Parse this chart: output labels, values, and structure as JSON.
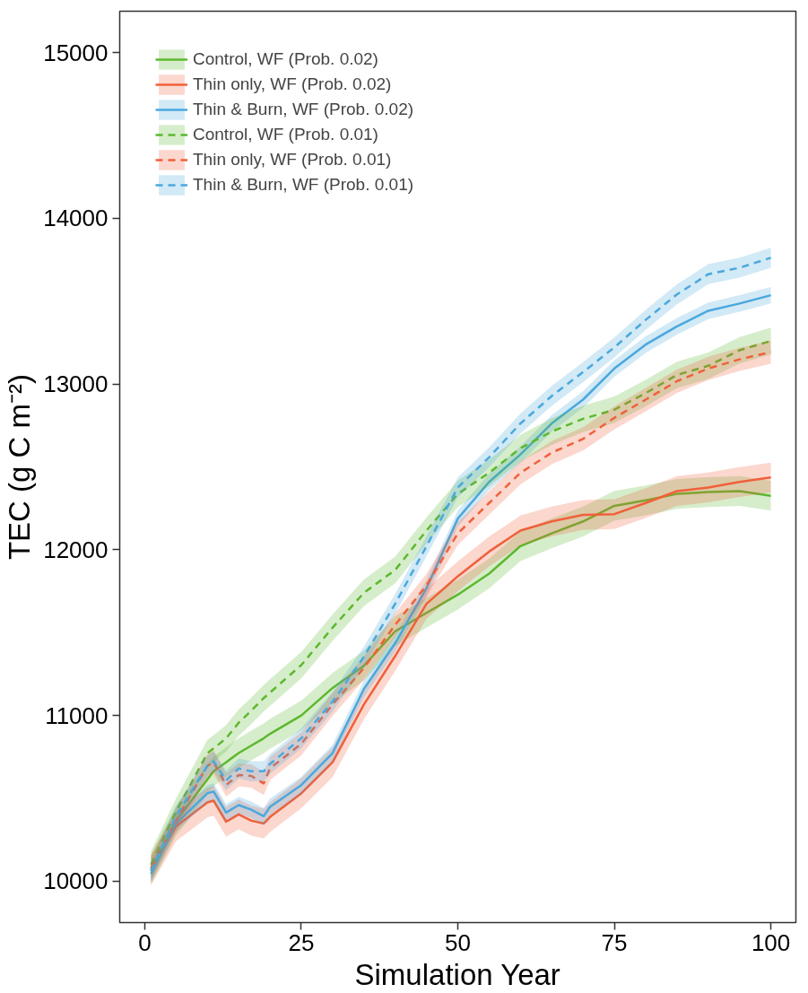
{
  "chart_data": {
    "type": "line",
    "xlabel": "Simulation Year",
    "ylabel": "TEC (g C m⁻²)",
    "x": [
      1,
      5,
      10,
      11,
      13,
      15,
      17,
      19,
      20,
      25,
      30,
      35,
      40,
      45,
      50,
      55,
      60,
      65,
      70,
      75,
      80,
      85,
      90,
      95,
      100
    ],
    "xlim": [
      -4,
      104
    ],
    "ylim": [
      9750,
      15250
    ],
    "xticks": [
      0,
      25,
      50,
      75,
      100
    ],
    "yticks": [
      10000,
      11000,
      12000,
      13000,
      14000,
      15000
    ],
    "grid": false,
    "legend": "top left",
    "marker": "none",
    "series": [
      {
        "name": "Control, WF (Prob. 0.02)",
        "color": "#5cb82e",
        "line_style": "solid",
        "values": [
          10072,
          10365,
          10613,
          10663,
          10718,
          10773,
          10818,
          10862,
          10889,
          11000,
          11166,
          11300,
          11508,
          11619,
          11729,
          11856,
          12022,
          12099,
          12171,
          12265,
          12298,
          12337,
          12348,
          12354,
          12326
        ],
        "lower": [
          9982,
          10275,
          10523,
          10573,
          10628,
          10683,
          10728,
          10772,
          10799,
          10910,
          11076,
          11210,
          11418,
          11529,
          11639,
          11766,
          11932,
          12009,
          12081,
          12175,
          12208,
          12247,
          12258,
          12264,
          12236
        ],
        "upper": [
          10162,
          10455,
          10703,
          10753,
          10808,
          10863,
          10908,
          10952,
          10979,
          11090,
          11256,
          11390,
          11598,
          11709,
          11819,
          11946,
          12112,
          12189,
          12261,
          12355,
          12388,
          12427,
          12438,
          12444,
          12416
        ]
      },
      {
        "name": "Thin only, WF (Prob. 0.02)",
        "color": "#f0603a",
        "line_style": "solid",
        "values": [
          10065,
          10331,
          10475,
          10486,
          10359,
          10403,
          10365,
          10348,
          10387,
          10530,
          10718,
          11066,
          11359,
          11674,
          11840,
          11989,
          12116,
          12171,
          12210,
          12215,
          12282,
          12354,
          12376,
          12409,
          12436
        ],
        "lower": [
          9975,
          10241,
          10385,
          10396,
          10269,
          10313,
          10275,
          10258,
          10297,
          10440,
          10628,
          10976,
          11269,
          11584,
          11750,
          11899,
          12026,
          12081,
          12120,
          12125,
          12192,
          12264,
          12286,
          12319,
          12346
        ],
        "upper": [
          10155,
          10421,
          10565,
          10576,
          10449,
          10493,
          10455,
          10438,
          10477,
          10620,
          10808,
          11156,
          11449,
          11764,
          11930,
          12079,
          12206,
          12261,
          12300,
          12305,
          12372,
          12444,
          12466,
          12499,
          12526
        ]
      },
      {
        "name": "Thin & Burn, WF (Prob. 0.02)",
        "color": "#4aa8dd",
        "line_style": "solid",
        "values": [
          10044,
          10348,
          10530,
          10541,
          10414,
          10459,
          10431,
          10392,
          10448,
          10580,
          10773,
          11160,
          11436,
          11768,
          12188,
          12409,
          12575,
          12762,
          12906,
          13094,
          13238,
          13348,
          13442,
          13486,
          13536
        ],
        "lower": [
          9994,
          10298,
          10480,
          10491,
          10364,
          10409,
          10381,
          10342,
          10398,
          10530,
          10723,
          11110,
          11386,
          11718,
          12138,
          12359,
          12525,
          12712,
          12856,
          13044,
          13188,
          13298,
          13392,
          13436,
          13486
        ],
        "upper": [
          10094,
          10398,
          10580,
          10591,
          10464,
          10509,
          10481,
          10442,
          10498,
          10630,
          10823,
          11210,
          11486,
          11818,
          12238,
          12459,
          12625,
          12812,
          12956,
          13144,
          13288,
          13398,
          13492,
          13536,
          13586
        ]
      },
      {
        "name": "Control, WF (Prob. 0.01)",
        "color": "#5cb82e",
        "line_style": "dashed",
        "values": [
          10100,
          10420,
          10773,
          10801,
          10862,
          10956,
          11028,
          11105,
          11138,
          11304,
          11530,
          11740,
          11878,
          12116,
          12337,
          12464,
          12613,
          12713,
          12790,
          12845,
          12945,
          13055,
          13110,
          13204,
          13260
        ],
        "lower": [
          10020,
          10340,
          10693,
          10721,
          10782,
          10876,
          10948,
          11025,
          11058,
          11224,
          11450,
          11660,
          11798,
          12036,
          12257,
          12384,
          12533,
          12633,
          12710,
          12765,
          12865,
          12975,
          13030,
          13124,
          13180
        ],
        "upper": [
          10180,
          10500,
          10853,
          10881,
          10942,
          11036,
          11108,
          11185,
          11218,
          11384,
          11610,
          11820,
          11958,
          12196,
          12417,
          12544,
          12693,
          12793,
          12870,
          12925,
          13025,
          13135,
          13190,
          13284,
          13340
        ]
      },
      {
        "name": "Thin only, WF (Prob. 0.01)",
        "color": "#f0603a",
        "line_style": "dashed",
        "values": [
          10080,
          10365,
          10696,
          10718,
          10580,
          10641,
          10635,
          10590,
          10680,
          10829,
          11066,
          11287,
          11547,
          11785,
          12099,
          12282,
          12464,
          12586,
          12669,
          12796,
          12906,
          13017,
          13094,
          13149,
          13193
        ],
        "lower": [
          10010,
          10295,
          10626,
          10648,
          10510,
          10571,
          10565,
          10520,
          10610,
          10759,
          10996,
          11217,
          11477,
          11715,
          12029,
          12212,
          12394,
          12516,
          12599,
          12726,
          12836,
          12947,
          13024,
          13079,
          13123
        ],
        "upper": [
          10150,
          10435,
          10766,
          10788,
          10650,
          10711,
          10705,
          10660,
          10750,
          10899,
          11136,
          11357,
          11617,
          11855,
          12169,
          12352,
          12534,
          12656,
          12739,
          12866,
          12976,
          13087,
          13164,
          13219,
          13263
        ]
      },
      {
        "name": "Thin & Burn, WF (Prob. 0.01)",
        "color": "#4aa8dd",
        "line_style": "dashed",
        "values": [
          10060,
          10392,
          10696,
          10724,
          10608,
          10680,
          10663,
          10663,
          10707,
          10862,
          11083,
          11354,
          11674,
          12022,
          12376,
          12558,
          12762,
          12928,
          13072,
          13221,
          13387,
          13541,
          13663,
          13702,
          13762
        ],
        "lower": [
          10000,
          10332,
          10636,
          10664,
          10548,
          10620,
          10603,
          10603,
          10647,
          10802,
          11023,
          11294,
          11614,
          11962,
          12316,
          12498,
          12702,
          12868,
          13012,
          13161,
          13327,
          13481,
          13603,
          13642,
          13702
        ],
        "upper": [
          10120,
          10452,
          10756,
          10784,
          10668,
          10740,
          10723,
          10723,
          10767,
          10922,
          11143,
          11414,
          11734,
          12082,
          12436,
          12618,
          12822,
          12988,
          13132,
          13281,
          13447,
          13601,
          13723,
          13762,
          13822
        ]
      }
    ]
  }
}
